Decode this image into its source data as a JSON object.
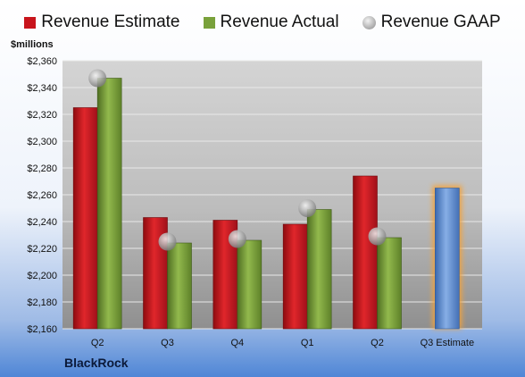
{
  "legend": {
    "estimate_label": "Revenue Estimate",
    "actual_label": "Revenue Actual",
    "gaap_label": "Revenue GAAP"
  },
  "colors": {
    "estimate": "#c8141c",
    "actual": "#79a13b",
    "gaap": "#a9a9a9",
    "forecast": "#5a86c8",
    "forecast_glow": "#f3a23a"
  },
  "units_label": "$millions",
  "company": "BlackRock",
  "chart_data": {
    "type": "bar",
    "categories": [
      "Q2",
      "Q3",
      "Q4",
      "Q1",
      "Q2",
      "Q3 Estimate"
    ],
    "ylim": [
      2160,
      2360
    ],
    "yticks": [
      "$2,160",
      "$2,180",
      "$2,200",
      "$2,220",
      "$2,240",
      "$2,260",
      "$2,280",
      "$2,300",
      "$2,320",
      "$2,340",
      "$2,360"
    ],
    "series": [
      {
        "name": "Revenue Estimate",
        "values": [
          2325,
          2243,
          2241,
          2238,
          2274,
          2265
        ]
      },
      {
        "name": "Revenue Actual",
        "values": [
          2347,
          2224,
          2226,
          2249,
          2228,
          null
        ]
      },
      {
        "name": "Revenue GAAP",
        "values": [
          2347,
          2225,
          2227,
          2250,
          2229,
          null
        ]
      }
    ],
    "grid": true,
    "legend_position": "top"
  }
}
